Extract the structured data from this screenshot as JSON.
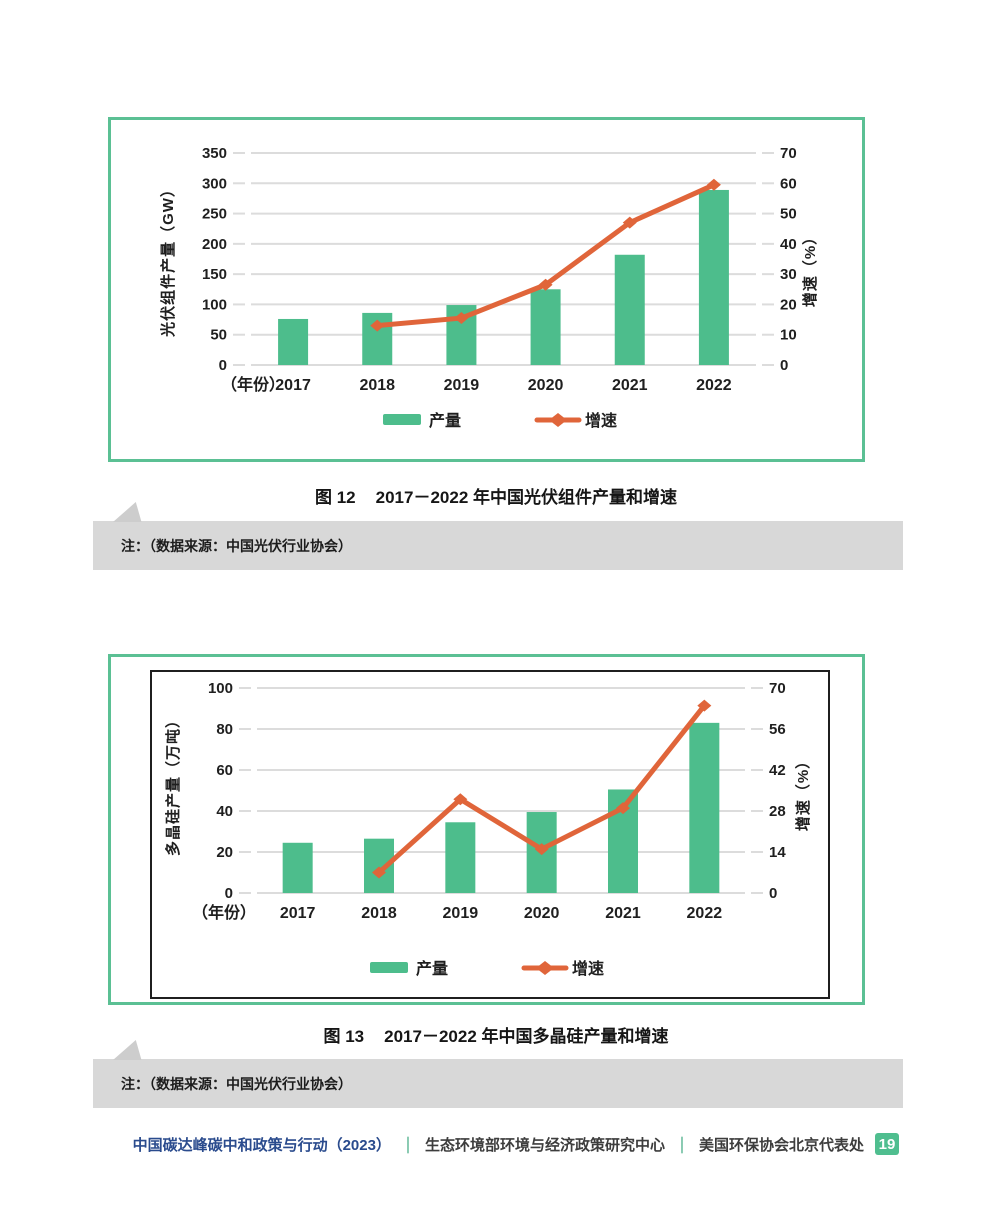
{
  "figures": [
    {
      "caption_prefix": "图 12",
      "caption": "2017－2022 年中国光伏组件产量和增速",
      "note": "注：（数据来源：中国光伏行业协会）"
    },
    {
      "caption_prefix": "图 13",
      "caption": "2017－2022 年中国多晶硅产量和增速",
      "note": "注：（数据来源：中国光伏行业协会）"
    }
  ],
  "footer": {
    "report_title": "中国碳达峰碳中和政策与行动（2023）",
    "divider": "｜",
    "org_1": "生态环境部环境与经济政策研究中心",
    "org_2": "美国环保协会北京代表处",
    "page_number": "19"
  },
  "colors": {
    "bar": "#4DBD8C",
    "line": "#E0653A",
    "card_border": "#5BC094",
    "grid": "#DCDCDC",
    "inner_border": "#1F1F1F",
    "note_bg": "#D8D8D8",
    "note_pointer": "#CDCDCD",
    "footer_blue": "#2A4B8D",
    "footer_green": "#4FB08C",
    "footer_text": "#3D3D3D",
    "badge_bg": "#4FBE8F",
    "badge_text": "#FFFFFF",
    "text": "#1F1F1F"
  },
  "chart_data": [
    {
      "type": "bar",
      "title": "图12 2017－2022年中国光伏组件产量和增速",
      "categories": [
        "2017",
        "2018",
        "2019",
        "2020",
        "2021",
        "2022"
      ],
      "series": [
        {
          "name": "产量",
          "type": "bar",
          "axis": "left",
          "unit": "GW",
          "values": [
            76,
            86,
            99,
            125,
            182,
            289
          ]
        },
        {
          "name": "增速",
          "type": "line",
          "axis": "right",
          "unit": "%",
          "values": [
            null,
            13,
            15.5,
            26.5,
            47,
            59.5
          ]
        }
      ],
      "left_axis": {
        "label": "光伏组件产量（GW）",
        "ticks": [
          0,
          50,
          100,
          150,
          200,
          250,
          300,
          350
        ],
        "max": 350
      },
      "right_axis": {
        "label": "增速（%）",
        "ticks": [
          0,
          10,
          20,
          30,
          40,
          50,
          60,
          70
        ],
        "max": 70
      },
      "x_prefix": "（年份）",
      "legend": [
        "产量",
        "增速"
      ],
      "legend_position": "bottom",
      "grid": true
    },
    {
      "type": "bar",
      "title": "图13 2017－2022年中国多晶硅产量和增速",
      "categories": [
        "2017",
        "2018",
        "2019",
        "2020",
        "2021",
        "2022"
      ],
      "series": [
        {
          "name": "产量",
          "type": "bar",
          "axis": "left",
          "unit": "万吨",
          "values": [
            24.5,
            26.5,
            34.5,
            39.5,
            50.5,
            83
          ]
        },
        {
          "name": "增速",
          "type": "line",
          "axis": "right",
          "unit": "%",
          "values": [
            null,
            7,
            32,
            15,
            29,
            64
          ]
        }
      ],
      "left_axis": {
        "label": "多晶硅产量（万吨）",
        "ticks": [
          0,
          20,
          40,
          60,
          80,
          100
        ],
        "max": 100
      },
      "right_axis": {
        "label": "增速（%）",
        "ticks": [
          0,
          14,
          28,
          42,
          56,
          70
        ],
        "max": 70
      },
      "x_prefix": "（年份）",
      "legend": [
        "产量",
        "增速"
      ],
      "legend_position": "bottom",
      "grid": true
    }
  ]
}
